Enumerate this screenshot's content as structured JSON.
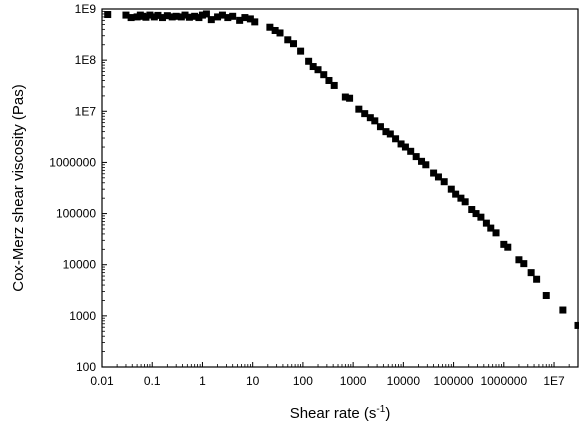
{
  "chart_data": {
    "type": "scatter",
    "title": "",
    "xlabel": "Shear rate (s",
    "xlabel_sup": "-1",
    "xlabel_suffix": ")",
    "ylabel": "Cox-Merz shear viscosity (Pas)",
    "x_scale": "log",
    "y_scale": "log",
    "xlim": [
      0.01,
      30000000
    ],
    "ylim": [
      100,
      1000000000
    ],
    "x_ticks": [
      {
        "value": 0.01,
        "label": "0.01"
      },
      {
        "value": 0.1,
        "label": "0.1"
      },
      {
        "value": 1,
        "label": "1"
      },
      {
        "value": 10,
        "label": "10"
      },
      {
        "value": 100,
        "label": "100"
      },
      {
        "value": 1000,
        "label": "1000"
      },
      {
        "value": 10000,
        "label": "10000"
      },
      {
        "value": 100000,
        "label": "100000"
      },
      {
        "value": 1000000,
        "label": "1000000"
      },
      {
        "value": 10000000,
        "label": "1E7"
      }
    ],
    "y_ticks": [
      {
        "value": 100,
        "label": "100"
      },
      {
        "value": 1000,
        "label": "1000"
      },
      {
        "value": 10000,
        "label": "10000"
      },
      {
        "value": 100000,
        "label": "100000"
      },
      {
        "value": 1000000,
        "label": "1000000"
      },
      {
        "value": 10000000,
        "label": "1E7"
      },
      {
        "value": 100000000,
        "label": "1E8"
      },
      {
        "value": 1000000000,
        "label": "1E9"
      }
    ],
    "grid": false,
    "legend": "none",
    "marker": "square",
    "marker_color": "#000000",
    "series": [
      {
        "points": [
          [
            0.013,
            780000000
          ],
          [
            0.03,
            760000000
          ],
          [
            0.038,
            680000000
          ],
          [
            0.05,
            700000000
          ],
          [
            0.058,
            760000000
          ],
          [
            0.065,
            720000000
          ],
          [
            0.075,
            690000000
          ],
          [
            0.09,
            760000000
          ],
          [
            0.11,
            700000000
          ],
          [
            0.13,
            750000000
          ],
          [
            0.16,
            680000000
          ],
          [
            0.2,
            740000000
          ],
          [
            0.25,
            700000000
          ],
          [
            0.3,
            720000000
          ],
          [
            0.38,
            700000000
          ],
          [
            0.45,
            760000000
          ],
          [
            0.55,
            690000000
          ],
          [
            0.7,
            720000000
          ],
          [
            0.85,
            680000000
          ],
          [
            1.0,
            760000000
          ],
          [
            1.2,
            800000000
          ],
          [
            1.5,
            620000000
          ],
          [
            2.0,
            700000000
          ],
          [
            2.5,
            760000000
          ],
          [
            3.2,
            680000000
          ],
          [
            4.0,
            720000000
          ],
          [
            5.5,
            600000000
          ],
          [
            7.0,
            680000000
          ],
          [
            9.0,
            640000000
          ],
          [
            11.0,
            560000000
          ],
          [
            22,
            440000000
          ],
          [
            28,
            380000000
          ],
          [
            35,
            340000000
          ],
          [
            50,
            250000000
          ],
          [
            65,
            210000000
          ],
          [
            90,
            150000000
          ],
          [
            130,
            95000000
          ],
          [
            160,
            75000000
          ],
          [
            200,
            65000000
          ],
          [
            260,
            52000000
          ],
          [
            330,
            40000000
          ],
          [
            420,
            32000000
          ],
          [
            700,
            19000000
          ],
          [
            850,
            18000000
          ],
          [
            1300,
            11000000
          ],
          [
            1700,
            9000000
          ],
          [
            2200,
            7500000
          ],
          [
            2700,
            6500000
          ],
          [
            3500,
            5000000
          ],
          [
            4500,
            4000000
          ],
          [
            5500,
            3600000
          ],
          [
            7000,
            2900000
          ],
          [
            9000,
            2300000
          ],
          [
            11000,
            2000000
          ],
          [
            14000,
            1650000
          ],
          [
            18000,
            1300000
          ],
          [
            23000,
            1050000
          ],
          [
            28000,
            900000
          ],
          [
            40000,
            620000
          ],
          [
            50000,
            520000
          ],
          [
            65000,
            420000
          ],
          [
            90000,
            300000
          ],
          [
            110000,
            240000
          ],
          [
            140000,
            200000
          ],
          [
            170000,
            170000
          ],
          [
            230000,
            120000
          ],
          [
            280000,
            100000
          ],
          [
            350000,
            85000
          ],
          [
            450000,
            65000
          ],
          [
            550000,
            52000
          ],
          [
            700000,
            42000
          ],
          [
            1000000,
            25000
          ],
          [
            1200000,
            22000
          ],
          [
            2000000,
            12500
          ],
          [
            2500000,
            10500
          ],
          [
            3500000,
            7000
          ],
          [
            4500000,
            5200
          ],
          [
            7000000,
            2500
          ],
          [
            15000000,
            1300
          ],
          [
            30000000,
            650
          ]
        ]
      }
    ]
  }
}
